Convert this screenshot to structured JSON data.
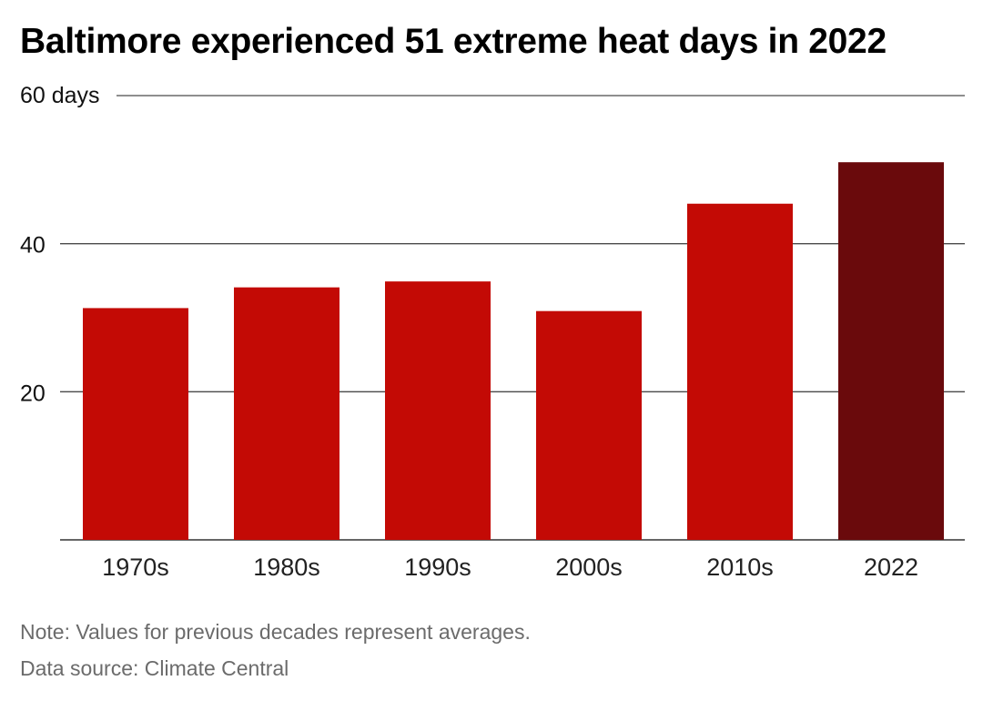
{
  "colors": {
    "bar": "#c30a05",
    "highlight_bar": "#6a0a0c",
    "gridline": "#4a4a4a",
    "footer_text": "#6b6b6b"
  },
  "chart_data": {
    "type": "bar",
    "title": "Baltimore experienced 51 extreme heat days in 2022",
    "categories": [
      "1970s",
      "1980s",
      "1990s",
      "2000s",
      "2010s",
      "2022"
    ],
    "values": [
      31.3,
      34.1,
      34.9,
      30.9,
      45.4,
      51
    ],
    "highlight_index": 5,
    "ylim": [
      0,
      60
    ],
    "yticks": [
      20,
      40,
      60
    ],
    "ytick_labels": [
      "20",
      "40",
      "60 days"
    ],
    "xlabel": "",
    "ylabel": "",
    "grid": true
  },
  "footer": {
    "note": "Note: Values for previous decades represent averages.",
    "source": "Data source: Climate Central"
  }
}
